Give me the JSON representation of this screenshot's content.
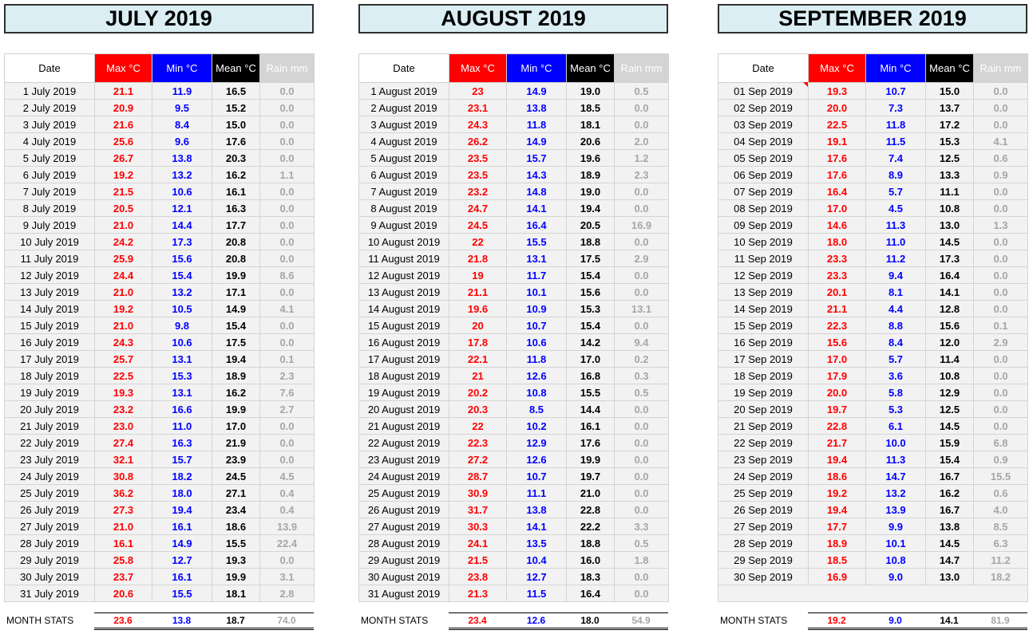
{
  "headers": {
    "date": "Date",
    "max": "Max °C",
    "min": "Min °C",
    "mean": "Mean °C",
    "rain": "Rain mm"
  },
  "months": [
    {
      "title": "JULY 2019",
      "rows": [
        [
          "1 July 2019",
          "21.1",
          "11.9",
          "16.5",
          "0.0"
        ],
        [
          "2 July 2019",
          "20.9",
          "9.5",
          "15.2",
          "0.0"
        ],
        [
          "3 July 2019",
          "21.6",
          "8.4",
          "15.0",
          "0.0"
        ],
        [
          "4 July 2019",
          "25.6",
          "9.6",
          "17.6",
          "0.0"
        ],
        [
          "5 July 2019",
          "26.7",
          "13.8",
          "20.3",
          "0.0"
        ],
        [
          "6 July 2019",
          "19.2",
          "13.2",
          "16.2",
          "1.1"
        ],
        [
          "7 July 2019",
          "21.5",
          "10.6",
          "16.1",
          "0.0"
        ],
        [
          "8 July 2019",
          "20.5",
          "12.1",
          "16.3",
          "0.0"
        ],
        [
          "9 July 2019",
          "21.0",
          "14.4",
          "17.7",
          "0.0"
        ],
        [
          "10 July 2019",
          "24.2",
          "17.3",
          "20.8",
          "0.0"
        ],
        [
          "11 July 2019",
          "25.9",
          "15.6",
          "20.8",
          "0.0"
        ],
        [
          "12 July 2019",
          "24.4",
          "15.4",
          "19.9",
          "8.6"
        ],
        [
          "13 July 2019",
          "21.0",
          "13.2",
          "17.1",
          "0.0"
        ],
        [
          "14 July 2019",
          "19.2",
          "10.5",
          "14.9",
          "4.1"
        ],
        [
          "15 July 2019",
          "21.0",
          "9.8",
          "15.4",
          "0.0"
        ],
        [
          "16 July 2019",
          "24.3",
          "10.6",
          "17.5",
          "0.0"
        ],
        [
          "17 July 2019",
          "25.7",
          "13.1",
          "19.4",
          "0.1"
        ],
        [
          "18 July 2019",
          "22.5",
          "15.3",
          "18.9",
          "2.3"
        ],
        [
          "19 July 2019",
          "19.3",
          "13.1",
          "16.2",
          "7.6"
        ],
        [
          "20 July 2019",
          "23.2",
          "16.6",
          "19.9",
          "2.7"
        ],
        [
          "21 July 2019",
          "23.0",
          "11.0",
          "17.0",
          "0.0"
        ],
        [
          "22 July 2019",
          "27.4",
          "16.3",
          "21.9",
          "0.0"
        ],
        [
          "23 July 2019",
          "32.1",
          "15.7",
          "23.9",
          "0.0"
        ],
        [
          "24 July 2019",
          "30.8",
          "18.2",
          "24.5",
          "4.5"
        ],
        [
          "25 July 2019",
          "36.2",
          "18.0",
          "27.1",
          "0.4"
        ],
        [
          "26 July 2019",
          "27.3",
          "19.4",
          "23.4",
          "0.4"
        ],
        [
          "27 July 2019",
          "21.0",
          "16.1",
          "18.6",
          "13.9"
        ],
        [
          "28 July 2019",
          "16.1",
          "14.9",
          "15.5",
          "22.4"
        ],
        [
          "29 July 2019",
          "25.8",
          "12.7",
          "19.3",
          "0.0"
        ],
        [
          "30 July 2019",
          "23.7",
          "16.1",
          "19.9",
          "3.1"
        ],
        [
          "31 July 2019",
          "20.6",
          "15.5",
          "18.1",
          "2.8"
        ]
      ],
      "stats": {
        "label": "MONTH STATS",
        "max": "23.6",
        "min": "13.8",
        "mean": "18.7",
        "rain": "74.0"
      }
    },
    {
      "title": "AUGUST 2019",
      "rows": [
        [
          "1 August 2019",
          "23",
          "14.9",
          "19.0",
          "0.5"
        ],
        [
          "2 August 2019",
          "23.1",
          "13.8",
          "18.5",
          "0.0"
        ],
        [
          "3 August 2019",
          "24.3",
          "11.8",
          "18.1",
          "0.0"
        ],
        [
          "4 August 2019",
          "26.2",
          "14.9",
          "20.6",
          "2.0"
        ],
        [
          "5 August 2019",
          "23.5",
          "15.7",
          "19.6",
          "1.2"
        ],
        [
          "6 August 2019",
          "23.5",
          "14.3",
          "18.9",
          "2.3"
        ],
        [
          "7 August 2019",
          "23.2",
          "14.8",
          "19.0",
          "0.0"
        ],
        [
          "8 August 2019",
          "24.7",
          "14.1",
          "19.4",
          "0.0"
        ],
        [
          "9 August 2019",
          "24.5",
          "16.4",
          "20.5",
          "16.9"
        ],
        [
          "10 August 2019",
          "22",
          "15.5",
          "18.8",
          "0.0"
        ],
        [
          "11 August 2019",
          "21.8",
          "13.1",
          "17.5",
          "2.9"
        ],
        [
          "12 August 2019",
          "19",
          "11.7",
          "15.4",
          "0.0"
        ],
        [
          "13 August 2019",
          "21.1",
          "10.1",
          "15.6",
          "0.0"
        ],
        [
          "14 August 2019",
          "19.6",
          "10.9",
          "15.3",
          "13.1"
        ],
        [
          "15 August 2019",
          "20",
          "10.7",
          "15.4",
          "0.0"
        ],
        [
          "16 August 2019",
          "17.8",
          "10.6",
          "14.2",
          "9.4"
        ],
        [
          "17 August 2019",
          "22.1",
          "11.8",
          "17.0",
          "0.2"
        ],
        [
          "18 August 2019",
          "21",
          "12.6",
          "16.8",
          "0.3"
        ],
        [
          "19 August 2019",
          "20.2",
          "10.8",
          "15.5",
          "0.5"
        ],
        [
          "20 August 2019",
          "20.3",
          "8.5",
          "14.4",
          "0.0"
        ],
        [
          "21 August 2019",
          "22",
          "10.2",
          "16.1",
          "0.0"
        ],
        [
          "22 August 2019",
          "22.3",
          "12.9",
          "17.6",
          "0.0"
        ],
        [
          "23 August 2019",
          "27.2",
          "12.6",
          "19.9",
          "0.0"
        ],
        [
          "24 August 2019",
          "28.7",
          "10.7",
          "19.7",
          "0.0"
        ],
        [
          "25 August 2019",
          "30.9",
          "11.1",
          "21.0",
          "0.0"
        ],
        [
          "26 August 2019",
          "31.7",
          "13.8",
          "22.8",
          "0.0"
        ],
        [
          "27 August 2019",
          "30.3",
          "14.1",
          "22.2",
          "3.3"
        ],
        [
          "28 August 2019",
          "24.1",
          "13.5",
          "18.8",
          "0.5"
        ],
        [
          "29 August 2019",
          "21.5",
          "10.4",
          "16.0",
          "1.8"
        ],
        [
          "30 August 2019",
          "23.8",
          "12.7",
          "18.3",
          "0.0"
        ],
        [
          "31 August 2019",
          "21.3",
          "11.5",
          "16.4",
          "0.0"
        ]
      ],
      "stats": {
        "label": "MONTH STATS",
        "max": "23.4",
        "min": "12.6",
        "mean": "18.0",
        "rain": "54.9"
      }
    },
    {
      "title": "SEPTEMBER 2019",
      "rows": [
        [
          "01 Sep 2019",
          "19.3",
          "10.7",
          "15.0",
          "0.0"
        ],
        [
          "02 Sep 2019",
          "20.0",
          "7.3",
          "13.7",
          "0.0"
        ],
        [
          "03 Sep 2019",
          "22.5",
          "11.8",
          "17.2",
          "0.0"
        ],
        [
          "04 Sep 2019",
          "19.1",
          "11.5",
          "15.3",
          "4.1"
        ],
        [
          "05 Sep 2019",
          "17.6",
          "7.4",
          "12.5",
          "0.6"
        ],
        [
          "06 Sep 2019",
          "17.6",
          "8.9",
          "13.3",
          "0.9"
        ],
        [
          "07 Sep 2019",
          "16.4",
          "5.7",
          "11.1",
          "0.0"
        ],
        [
          "08 Sep 2019",
          "17.0",
          "4.5",
          "10.8",
          "0.0"
        ],
        [
          "09 Sep 2019",
          "14.6",
          "11.3",
          "13.0",
          "1.3"
        ],
        [
          "10 Sep 2019",
          "18.0",
          "11.0",
          "14.5",
          "0.0"
        ],
        [
          "11 Sep 2019",
          "23.3",
          "11.2",
          "17.3",
          "0.0"
        ],
        [
          "12 Sep 2019",
          "23.3",
          "9.4",
          "16.4",
          "0.0"
        ],
        [
          "13 Sep 2019",
          "20.1",
          "8.1",
          "14.1",
          "0.0"
        ],
        [
          "14 Sep 2019",
          "21.1",
          "4.4",
          "12.8",
          "0.0"
        ],
        [
          "15 Sep 2019",
          "22.3",
          "8.8",
          "15.6",
          "0.1"
        ],
        [
          "16 Sep 2019",
          "15.6",
          "8.4",
          "12.0",
          "2.9"
        ],
        [
          "17 Sep 2019",
          "17.0",
          "5.7",
          "11.4",
          "0.0"
        ],
        [
          "18 Sep 2019",
          "17.9",
          "3.6",
          "10.8",
          "0.0"
        ],
        [
          "19 Sep 2019",
          "20.0",
          "5.8",
          "12.9",
          "0.0"
        ],
        [
          "20 Sep 2019",
          "19.7",
          "5.3",
          "12.5",
          "0.0"
        ],
        [
          "21 Sep 2019",
          "22.8",
          "6.1",
          "14.5",
          "0.0"
        ],
        [
          "22 Sep 2019",
          "21.7",
          "10.0",
          "15.9",
          "6.8"
        ],
        [
          "23 Sep 2019",
          "19.4",
          "11.3",
          "15.4",
          "0.9"
        ],
        [
          "24 Sep 2019",
          "18.6",
          "14.7",
          "16.7",
          "15.5"
        ],
        [
          "25 Sep 2019",
          "19.2",
          "13.2",
          "16.2",
          "0.6"
        ],
        [
          "26 Sep 2019",
          "19.4",
          "13.9",
          "16.7",
          "4.0"
        ],
        [
          "27 Sep 2019",
          "17.7",
          "9.9",
          "13.8",
          "8.5"
        ],
        [
          "28 Sep 2019",
          "18.9",
          "10.1",
          "14.5",
          "6.3"
        ],
        [
          "29 Sep 2019",
          "18.5",
          "10.8",
          "14.7",
          "11.2"
        ],
        [
          "30 Sep 2019",
          "16.9",
          "9.0",
          "13.0",
          "18.2"
        ]
      ],
      "stats": {
        "label": "MONTH STATS",
        "max": "19.2",
        "min": "9.0",
        "mean": "14.1",
        "rain": "81.9"
      }
    }
  ]
}
